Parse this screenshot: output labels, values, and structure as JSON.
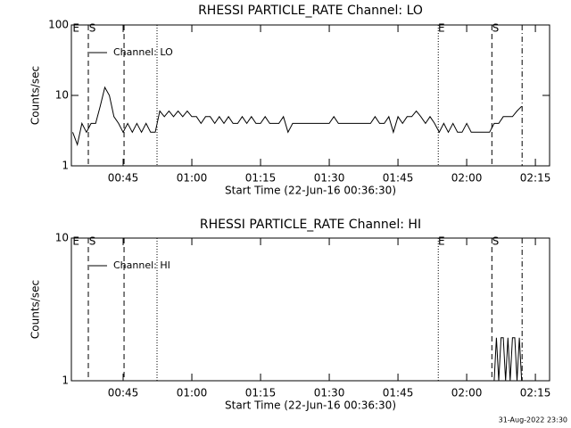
{
  "chart_data": [
    {
      "type": "line",
      "title": "RHESSI PARTICLE_RATE Channel: LO",
      "xlabel": "Start Time (22-Jun-16 00:36:30)",
      "ylabel": "Counts/sec",
      "log_y": true,
      "legend": "upper left",
      "xlim": [
        33.7,
        138.1
      ],
      "ylim": [
        1,
        100
      ],
      "yticks": [
        1,
        10,
        100
      ],
      "xticks": [
        {
          "value": 45,
          "label": "00:45"
        },
        {
          "value": 60,
          "label": "01:00"
        },
        {
          "value": 75,
          "label": "01:15"
        },
        {
          "value": 90,
          "label": "01:30"
        },
        {
          "value": 105,
          "label": "01:45"
        },
        {
          "value": 120,
          "label": "02:00"
        },
        {
          "value": 135,
          "label": "02:15"
        }
      ],
      "markers": [
        {
          "x": 37.4,
          "style": "dashed"
        },
        {
          "x": 45.2,
          "style": "dashed"
        },
        {
          "x": 52.4,
          "style": "dotted"
        },
        {
          "x": 113.8,
          "style": "dotted"
        },
        {
          "x": 125.5,
          "style": "dashed"
        },
        {
          "x": 132.1,
          "style": "dashdot"
        }
      ],
      "marker_labels": [
        {
          "x": 34.7,
          "text": "E"
        },
        {
          "x": 38.3,
          "text": "S"
        },
        {
          "x": 114.5,
          "text": "E"
        },
        {
          "x": 126.3,
          "text": "S"
        }
      ],
      "series": [
        {
          "name": "Channel: LO",
          "color": "#000000",
          "x": [
            34,
            35,
            36,
            37,
            38,
            39,
            40,
            41,
            42,
            43,
            44,
            45,
            46,
            47,
            48,
            49,
            50,
            51,
            52,
            53,
            54,
            55,
            56,
            57,
            58,
            59,
            60,
            61,
            62,
            63,
            64,
            65,
            66,
            67,
            68,
            69,
            70,
            71,
            72,
            73,
            74,
            75,
            76,
            77,
            78,
            79,
            80,
            81,
            82,
            83,
            84,
            85,
            86,
            87,
            88,
            89,
            90,
            91,
            92,
            93,
            94,
            95,
            96,
            97,
            98,
            99,
            100,
            101,
            102,
            103,
            104,
            105,
            106,
            107,
            108,
            109,
            110,
            111,
            112,
            113,
            114,
            115,
            116,
            117,
            118,
            119,
            120,
            121,
            122,
            123,
            124,
            125,
            126,
            127,
            128,
            129,
            130,
            131,
            132
          ],
          "values": [
            3,
            2,
            4,
            3,
            4,
            4,
            7,
            13,
            10,
            5,
            4,
            3,
            4,
            3,
            4,
            3,
            4,
            3,
            3,
            6,
            5,
            6,
            5,
            6,
            5,
            6,
            5,
            5,
            4,
            5,
            5,
            4,
            5,
            4,
            5,
            4,
            4,
            5,
            4,
            5,
            4,
            4,
            5,
            4,
            4,
            4,
            5,
            3,
            4,
            4,
            4,
            4,
            4,
            4,
            4,
            4,
            4,
            5,
            4,
            4,
            4,
            4,
            4,
            4,
            4,
            4,
            5,
            4,
            4,
            5,
            3,
            5,
            4,
            5,
            5,
            6,
            5,
            4,
            5,
            4,
            3,
            4,
            3,
            4,
            3,
            3,
            4,
            3,
            3,
            3,
            3,
            3,
            4,
            4,
            5,
            5,
            5,
            6,
            7
          ]
        }
      ]
    },
    {
      "type": "line",
      "title": "RHESSI PARTICLE_RATE Channel: HI",
      "xlabel": "Start Time (22-Jun-16 00:36:30)",
      "ylabel": "Counts/sec",
      "log_y": true,
      "legend": "upper left",
      "xlim": [
        33.7,
        138.1
      ],
      "ylim": [
        1,
        10
      ],
      "yticks": [
        1,
        10
      ],
      "xticks": [
        {
          "value": 45,
          "label": "00:45"
        },
        {
          "value": 60,
          "label": "01:00"
        },
        {
          "value": 75,
          "label": "01:15"
        },
        {
          "value": 90,
          "label": "01:30"
        },
        {
          "value": 105,
          "label": "01:45"
        },
        {
          "value": 120,
          "label": "02:00"
        },
        {
          "value": 135,
          "label": "02:15"
        }
      ],
      "markers": [
        {
          "x": 37.4,
          "style": "dashed"
        },
        {
          "x": 45.2,
          "style": "dashed"
        },
        {
          "x": 52.4,
          "style": "dotted"
        },
        {
          "x": 113.8,
          "style": "dotted"
        },
        {
          "x": 125.5,
          "style": "dashed"
        },
        {
          "x": 132.1,
          "style": "dashdot"
        }
      ],
      "marker_labels": [
        {
          "x": 34.7,
          "text": "E"
        },
        {
          "x": 38.3,
          "text": "S"
        },
        {
          "x": 114.5,
          "text": "E"
        },
        {
          "x": 126.3,
          "text": "S"
        }
      ],
      "series": [
        {
          "name": "Channel: HI",
          "color": "#000000",
          "x": [
            126,
            126.5,
            127,
            127.5,
            128,
            128.5,
            129,
            129.5,
            130,
            130.5,
            131,
            131.5,
            132
          ],
          "values": [
            1,
            2,
            1,
            2,
            2,
            1,
            2,
            1,
            2,
            2,
            1,
            2,
            1
          ]
        }
      ]
    }
  ],
  "footer": "31-Aug-2022 23:30"
}
